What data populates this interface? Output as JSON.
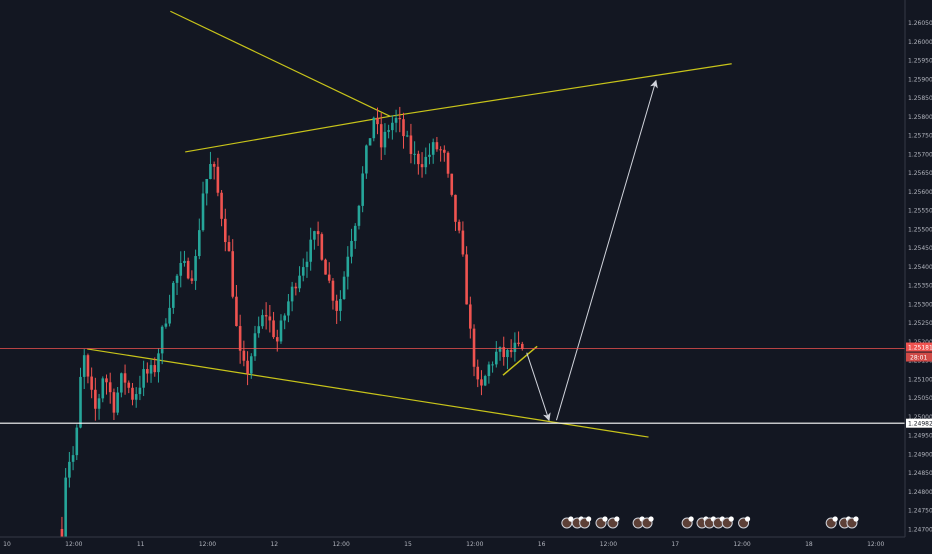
{
  "chart_data": {
    "type": "candlestick",
    "title": "",
    "xlabel": "",
    "ylabel": "",
    "ylim": [
      1.247,
      1.2607
    ],
    "grid": false,
    "y_ticks": [
      "1.24700",
      "1.24750",
      "1.24800",
      "1.24850",
      "1.24900",
      "1.24950",
      "1.25000",
      "1.25050",
      "1.25100",
      "1.25150",
      "1.25200",
      "1.25250",
      "1.25300",
      "1.25350",
      "1.25400",
      "1.25450",
      "1.25500",
      "1.25550",
      "1.25600",
      "1.25650",
      "1.25700",
      "1.25750",
      "1.25800",
      "1.25850",
      "1.25900",
      "1.25950",
      "1.26000",
      "1.26050"
    ],
    "x_ticks": [
      {
        "label": "10",
        "t": 0
      },
      {
        "label": "12:00",
        "t": 4.5
      },
      {
        "label": "11",
        "t": 9.0
      },
      {
        "label": "12:00",
        "t": 13.5
      },
      {
        "label": "12",
        "t": 18.0
      },
      {
        "label": "12:00",
        "t": 22.5
      },
      {
        "label": "15",
        "t": 27.0
      },
      {
        "label": "12:00",
        "t": 31.5
      },
      {
        "label": "16",
        "t": 36.0
      },
      {
        "label": "12:00",
        "t": 40.5
      },
      {
        "label": "17",
        "t": 45.0
      },
      {
        "label": "12:00",
        "t": 49.5
      },
      {
        "label": "18",
        "t": 54.0
      },
      {
        "label": "12:00",
        "t": 58.5
      }
    ],
    "price_path": [
      [
        3.7,
        1.247
      ],
      [
        4.0,
        1.2488
      ],
      [
        4.6,
        1.249
      ],
      [
        5.1,
        1.2518
      ],
      [
        5.5,
        1.2508
      ],
      [
        6.0,
        1.2501
      ],
      [
        6.5,
        1.2512
      ],
      [
        7.2,
        1.2503
      ],
      [
        7.8,
        1.2511
      ],
      [
        8.5,
        1.2505
      ],
      [
        9.2,
        1.2511
      ],
      [
        9.9,
        1.2512
      ],
      [
        10.6,
        1.2525
      ],
      [
        11.2,
        1.2535
      ],
      [
        11.8,
        1.254
      ],
      [
        12.6,
        1.2538
      ],
      [
        13.2,
        1.256
      ],
      [
        13.8,
        1.2568
      ],
      [
        14.4,
        1.2555
      ],
      [
        15.0,
        1.2542
      ],
      [
        15.6,
        1.2517
      ],
      [
        16.1,
        1.2511
      ],
      [
        16.8,
        1.2522
      ],
      [
        17.4,
        1.2528
      ],
      [
        18.2,
        1.252
      ],
      [
        18.9,
        1.253
      ],
      [
        19.6,
        1.2538
      ],
      [
        20.3,
        1.2544
      ],
      [
        20.9,
        1.2549
      ],
      [
        21.6,
        1.2537
      ],
      [
        22.3,
        1.2528
      ],
      [
        23.0,
        1.2545
      ],
      [
        23.6,
        1.2555
      ],
      [
        24.1,
        1.2568
      ],
      [
        24.7,
        1.258
      ],
      [
        25.2,
        1.2572
      ],
      [
        25.8,
        1.2578
      ],
      [
        26.3,
        1.2579
      ],
      [
        26.8,
        1.2574
      ],
      [
        27.4,
        1.2569
      ],
      [
        28.1,
        1.2568
      ],
      [
        28.8,
        1.2572
      ],
      [
        29.4,
        1.257
      ],
      [
        30.0,
        1.2556
      ],
      [
        30.6,
        1.2545
      ],
      [
        31.2,
        1.2522
      ],
      [
        31.8,
        1.2505
      ],
      [
        32.4,
        1.2513
      ],
      [
        33.0,
        1.2517
      ],
      [
        33.6,
        1.2516
      ],
      [
        34.2,
        1.2518
      ],
      [
        34.7,
        1.2517
      ]
    ],
    "current_price": "1.25181",
    "current_price_countdown": "28:01",
    "target_level": "1.24982",
    "drawings": {
      "upper_trendline": [
        [
          12.0,
          1.25705
        ],
        [
          25.8,
          1.258
        ]
      ],
      "upper_extension": [
        [
          25.8,
          1.258
        ],
        [
          48.8,
          1.2594
        ]
      ],
      "descending_line": [
        [
          11.0,
          1.2608
        ],
        [
          25.8,
          1.258
        ]
      ],
      "lower_trendline": [
        [
          5.4,
          1.2518
        ],
        [
          43.2,
          1.24945
        ]
      ],
      "small_support": [
        [
          33.4,
          1.2511
        ],
        [
          35.7,
          1.25187
        ]
      ],
      "arrow_down": [
        [
          35.0,
          1.2517
        ],
        [
          36.5,
          1.2499
        ]
      ],
      "arrow_up": [
        [
          37.0,
          1.2499
        ],
        [
          43.7,
          1.25895
        ]
      ]
    },
    "event_markers": [
      {
        "t": 37.7,
        "count": ""
      },
      {
        "t": 38.4,
        "count": ""
      },
      {
        "t": 38.9,
        "count": ""
      },
      {
        "t": 40.0,
        "count": ""
      },
      {
        "t": 40.8,
        "count": ""
      },
      {
        "t": 42.5,
        "count": ""
      },
      {
        "t": 43.1,
        "count": ""
      },
      {
        "t": 45.8,
        "count": ""
      },
      {
        "t": 46.8,
        "count": ""
      },
      {
        "t": 47.3,
        "count": ""
      },
      {
        "t": 47.9,
        "count": ""
      },
      {
        "t": 48.5,
        "count": ""
      },
      {
        "t": 49.6,
        "count": ""
      },
      {
        "t": 55.5,
        "count": ""
      },
      {
        "t": 56.4,
        "count": ""
      },
      {
        "t": 56.9,
        "count": ""
      }
    ],
    "colors": {
      "background": "#131722",
      "up": "#26a69a",
      "down": "#ef5350",
      "trendline": "#c8c41a",
      "arrow": "#d1d4dc",
      "price_line": "#ef5350",
      "level_line": "#ffffff",
      "axis_text": "#b2b5be"
    }
  }
}
